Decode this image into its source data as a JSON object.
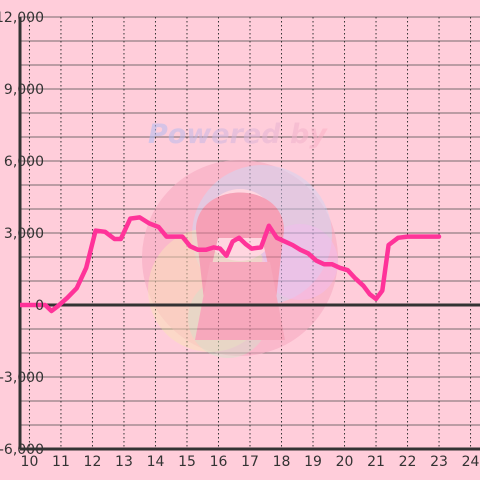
{
  "chart_data": {
    "type": "line",
    "title": "",
    "xlabel": "",
    "ylabel": "",
    "xlim": [
      9.7,
      24.3
    ],
    "ylim": [
      -6000,
      12000
    ],
    "x_ticks": [
      10,
      11,
      12,
      13,
      14,
      15,
      16,
      17,
      18,
      19,
      20,
      21,
      22,
      23,
      24
    ],
    "x_tick_labels": [
      "10",
      "11",
      "12",
      "13",
      "14",
      "15",
      "16",
      "17",
      "18",
      "19",
      "20",
      "21",
      "22",
      "23",
      "24"
    ],
    "y_ticks": [
      12000,
      9000,
      6000,
      3000,
      0,
      -3000,
      -6000
    ],
    "y_tick_labels": [
      "12,000",
      "9,000",
      "6,000",
      "3,000",
      "0",
      "-3,000",
      "-6,000"
    ],
    "grid": true,
    "legend": "none",
    "series": [
      {
        "color": "#ff3399",
        "x": [
          9.7,
          10.25,
          10.5,
          10.7,
          10.9,
          11.2,
          11.5,
          11.8,
          12.1,
          12.4,
          12.7,
          12.9,
          13.2,
          13.5,
          13.8,
          14.1,
          14.35,
          14.6,
          14.85,
          15.1,
          15.35,
          15.6,
          15.85,
          16.05,
          16.25,
          16.45,
          16.65,
          16.85,
          17.05,
          17.35,
          17.6,
          17.85,
          18.1,
          18.35,
          18.6,
          18.85,
          19.1,
          19.35,
          19.6,
          19.85,
          20.1,
          20.35,
          20.6,
          20.8,
          21.0,
          21.2,
          21.4,
          21.7,
          22.0,
          22.5,
          23.0
        ],
        "y": [
          0,
          0,
          0,
          -250,
          -50,
          300,
          700,
          1550,
          3100,
          3050,
          2750,
          2750,
          3600,
          3650,
          3400,
          3250,
          2850,
          2850,
          2850,
          2450,
          2300,
          2300,
          2400,
          2350,
          2050,
          2650,
          2800,
          2550,
          2350,
          2400,
          3300,
          2800,
          2650,
          2500,
          2300,
          2150,
          1850,
          1700,
          1700,
          1550,
          1450,
          1100,
          800,
          450,
          250,
          600,
          2500,
          2800,
          2850,
          2850,
          2850
        ]
      }
    ]
  },
  "watermark": {
    "text": "Powered by",
    "colors": [
      "#aebdf5",
      "#ffb0c4",
      "#f6a7c0",
      "#b6d7ff",
      "#f5f0a0",
      "#b8f0c0",
      "#e8b0ff"
    ]
  }
}
